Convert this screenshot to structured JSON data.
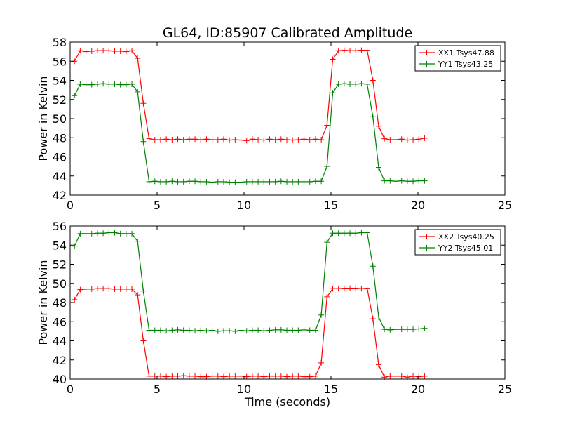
{
  "title": "GL64, ID:85907 Calibrated Amplitude",
  "xlabel": "Time (seconds)",
  "colors": {
    "XX": "#ff0000",
    "YY": "#008000"
  },
  "chart_data": [
    {
      "type": "line",
      "ylabel": "Power in Kelvin",
      "xlim": [
        0,
        25
      ],
      "ylim": [
        42,
        58
      ],
      "xticks": [
        "0",
        "5",
        "10",
        "15",
        "20",
        "25"
      ],
      "yticks": [
        "42",
        "44",
        "46",
        "48",
        "50",
        "52",
        "54",
        "56",
        "58"
      ],
      "legend_position": "top-right",
      "grid": false,
      "series": [
        {
          "name": "XX1 Tsys47.88",
          "color": "#ff0000",
          "x": [
            0.25,
            0.58,
            0.91,
            1.24,
            1.57,
            1.9,
            2.23,
            2.56,
            2.89,
            3.22,
            3.55,
            3.88,
            4.21,
            4.54,
            4.87,
            5.2,
            5.53,
            5.86,
            6.19,
            6.52,
            6.85,
            7.18,
            7.51,
            7.84,
            8.17,
            8.5,
            8.83,
            9.16,
            9.49,
            9.82,
            10.15,
            10.48,
            10.81,
            11.14,
            11.47,
            11.8,
            12.13,
            12.46,
            12.79,
            13.12,
            13.45,
            13.78,
            14.11,
            14.44,
            14.77,
            15.1,
            15.43,
            15.76,
            16.09,
            16.42,
            16.75,
            17.08,
            17.41,
            17.74,
            18.07,
            18.4,
            18.73,
            19.06,
            19.39,
            19.72,
            20.05,
            20.38
          ],
          "y": [
            56.0,
            57.1,
            57.0,
            57.05,
            57.1,
            57.1,
            57.1,
            57.05,
            57.05,
            57.0,
            57.1,
            56.3,
            51.6,
            47.9,
            47.8,
            47.8,
            47.85,
            47.8,
            47.85,
            47.8,
            47.85,
            47.85,
            47.8,
            47.85,
            47.8,
            47.8,
            47.85,
            47.75,
            47.8,
            47.75,
            47.7,
            47.85,
            47.8,
            47.75,
            47.85,
            47.8,
            47.85,
            47.8,
            47.75,
            47.8,
            47.85,
            47.8,
            47.85,
            47.8,
            49.3,
            56.2,
            57.1,
            57.15,
            57.1,
            57.1,
            57.15,
            57.15,
            54.0,
            49.2,
            47.9,
            47.8,
            47.8,
            47.85,
            47.75,
            47.8,
            47.85,
            47.95
          ]
        },
        {
          "name": "YY1 Tsys43.25",
          "color": "#008000",
          "x": [
            0.25,
            0.58,
            0.91,
            1.24,
            1.57,
            1.9,
            2.23,
            2.56,
            2.89,
            3.22,
            3.55,
            3.88,
            4.21,
            4.54,
            4.87,
            5.2,
            5.53,
            5.86,
            6.19,
            6.52,
            6.85,
            7.18,
            7.51,
            7.84,
            8.17,
            8.5,
            8.83,
            9.16,
            9.49,
            9.82,
            10.15,
            10.48,
            10.81,
            11.14,
            11.47,
            11.8,
            12.13,
            12.46,
            12.79,
            13.12,
            13.45,
            13.78,
            14.11,
            14.44,
            14.77,
            15.1,
            15.43,
            15.76,
            16.09,
            16.42,
            16.75,
            17.08,
            17.41,
            17.74,
            18.07,
            18.4,
            18.73,
            19.06,
            19.39,
            19.72,
            20.05,
            20.38
          ],
          "y": [
            52.4,
            53.6,
            53.55,
            53.55,
            53.6,
            53.65,
            53.6,
            53.6,
            53.55,
            53.55,
            53.6,
            52.8,
            47.6,
            43.4,
            43.45,
            43.4,
            43.4,
            43.45,
            43.4,
            43.4,
            43.45,
            43.45,
            43.4,
            43.4,
            43.35,
            43.4,
            43.4,
            43.35,
            43.35,
            43.35,
            43.4,
            43.4,
            43.4,
            43.4,
            43.4,
            43.4,
            43.45,
            43.4,
            43.4,
            43.4,
            43.4,
            43.4,
            43.45,
            43.45,
            45.0,
            52.7,
            53.6,
            53.65,
            53.6,
            53.6,
            53.65,
            53.6,
            50.2,
            44.9,
            43.5,
            43.5,
            43.45,
            43.5,
            43.45,
            43.45,
            43.5,
            43.5
          ]
        }
      ]
    },
    {
      "type": "line",
      "ylabel": "Power in Kelvin",
      "xlim": [
        0,
        25
      ],
      "ylim": [
        40,
        56
      ],
      "xticks": [
        "0",
        "5",
        "10",
        "15",
        "20",
        "25"
      ],
      "yticks": [
        "40",
        "42",
        "44",
        "46",
        "48",
        "50",
        "52",
        "54",
        "56"
      ],
      "legend_position": "top-right",
      "grid": false,
      "series": [
        {
          "name": "XX2 Tsys40.25",
          "color": "#ff0000",
          "x": [
            0.25,
            0.58,
            0.91,
            1.24,
            1.57,
            1.9,
            2.23,
            2.56,
            2.89,
            3.22,
            3.55,
            3.88,
            4.21,
            4.54,
            4.87,
            5.2,
            5.53,
            5.86,
            6.19,
            6.52,
            6.85,
            7.18,
            7.51,
            7.84,
            8.17,
            8.5,
            8.83,
            9.16,
            9.49,
            9.82,
            10.15,
            10.48,
            10.81,
            11.14,
            11.47,
            11.8,
            12.13,
            12.46,
            12.79,
            13.12,
            13.45,
            13.78,
            14.11,
            14.44,
            14.77,
            15.1,
            15.43,
            15.76,
            16.09,
            16.42,
            16.75,
            17.08,
            17.41,
            17.74,
            18.07,
            18.4,
            18.73,
            19.06,
            19.39,
            19.72,
            20.05,
            20.38
          ],
          "y": [
            48.3,
            49.35,
            49.4,
            49.4,
            49.45,
            49.45,
            49.45,
            49.4,
            49.4,
            49.4,
            49.4,
            48.8,
            44.0,
            40.3,
            40.3,
            40.3,
            40.25,
            40.3,
            40.3,
            40.35,
            40.3,
            40.3,
            40.25,
            40.25,
            40.3,
            40.3,
            40.25,
            40.3,
            40.3,
            40.3,
            40.25,
            40.3,
            40.3,
            40.25,
            40.3,
            40.3,
            40.3,
            40.25,
            40.3,
            40.3,
            40.25,
            40.25,
            40.3,
            41.7,
            48.6,
            49.45,
            49.45,
            49.5,
            49.5,
            49.5,
            49.45,
            49.5,
            46.3,
            41.5,
            40.2,
            40.3,
            40.3,
            40.3,
            40.2,
            40.3,
            40.25,
            40.3
          ]
        },
        {
          "name": "YY2 Tsys45.01",
          "color": "#008000",
          "x": [
            0.25,
            0.58,
            0.91,
            1.24,
            1.57,
            1.9,
            2.23,
            2.56,
            2.89,
            3.22,
            3.55,
            3.88,
            4.21,
            4.54,
            4.87,
            5.2,
            5.53,
            5.86,
            6.19,
            6.52,
            6.85,
            7.18,
            7.51,
            7.84,
            8.17,
            8.5,
            8.83,
            9.16,
            9.49,
            9.82,
            10.15,
            10.48,
            10.81,
            11.14,
            11.47,
            11.8,
            12.13,
            12.46,
            12.79,
            13.12,
            13.45,
            13.78,
            14.11,
            14.44,
            14.77,
            15.1,
            15.43,
            15.76,
            16.09,
            16.42,
            16.75,
            17.08,
            17.41,
            17.74,
            18.07,
            18.4,
            18.73,
            19.06,
            19.39,
            19.72,
            20.05,
            20.38
          ],
          "y": [
            53.9,
            55.2,
            55.2,
            55.2,
            55.25,
            55.25,
            55.3,
            55.3,
            55.2,
            55.2,
            55.2,
            54.4,
            49.2,
            45.1,
            45.1,
            45.1,
            45.05,
            45.1,
            45.15,
            45.1,
            45.1,
            45.05,
            45.1,
            45.05,
            45.1,
            45.0,
            45.05,
            45.05,
            45.0,
            45.1,
            45.05,
            45.1,
            45.1,
            45.05,
            45.1,
            45.15,
            45.15,
            45.1,
            45.1,
            45.1,
            45.15,
            45.1,
            45.1,
            46.7,
            54.3,
            55.25,
            55.25,
            55.25,
            55.25,
            55.25,
            55.3,
            55.3,
            51.8,
            46.5,
            45.2,
            45.15,
            45.2,
            45.2,
            45.2,
            45.2,
            45.25,
            45.3
          ]
        }
      ]
    }
  ]
}
